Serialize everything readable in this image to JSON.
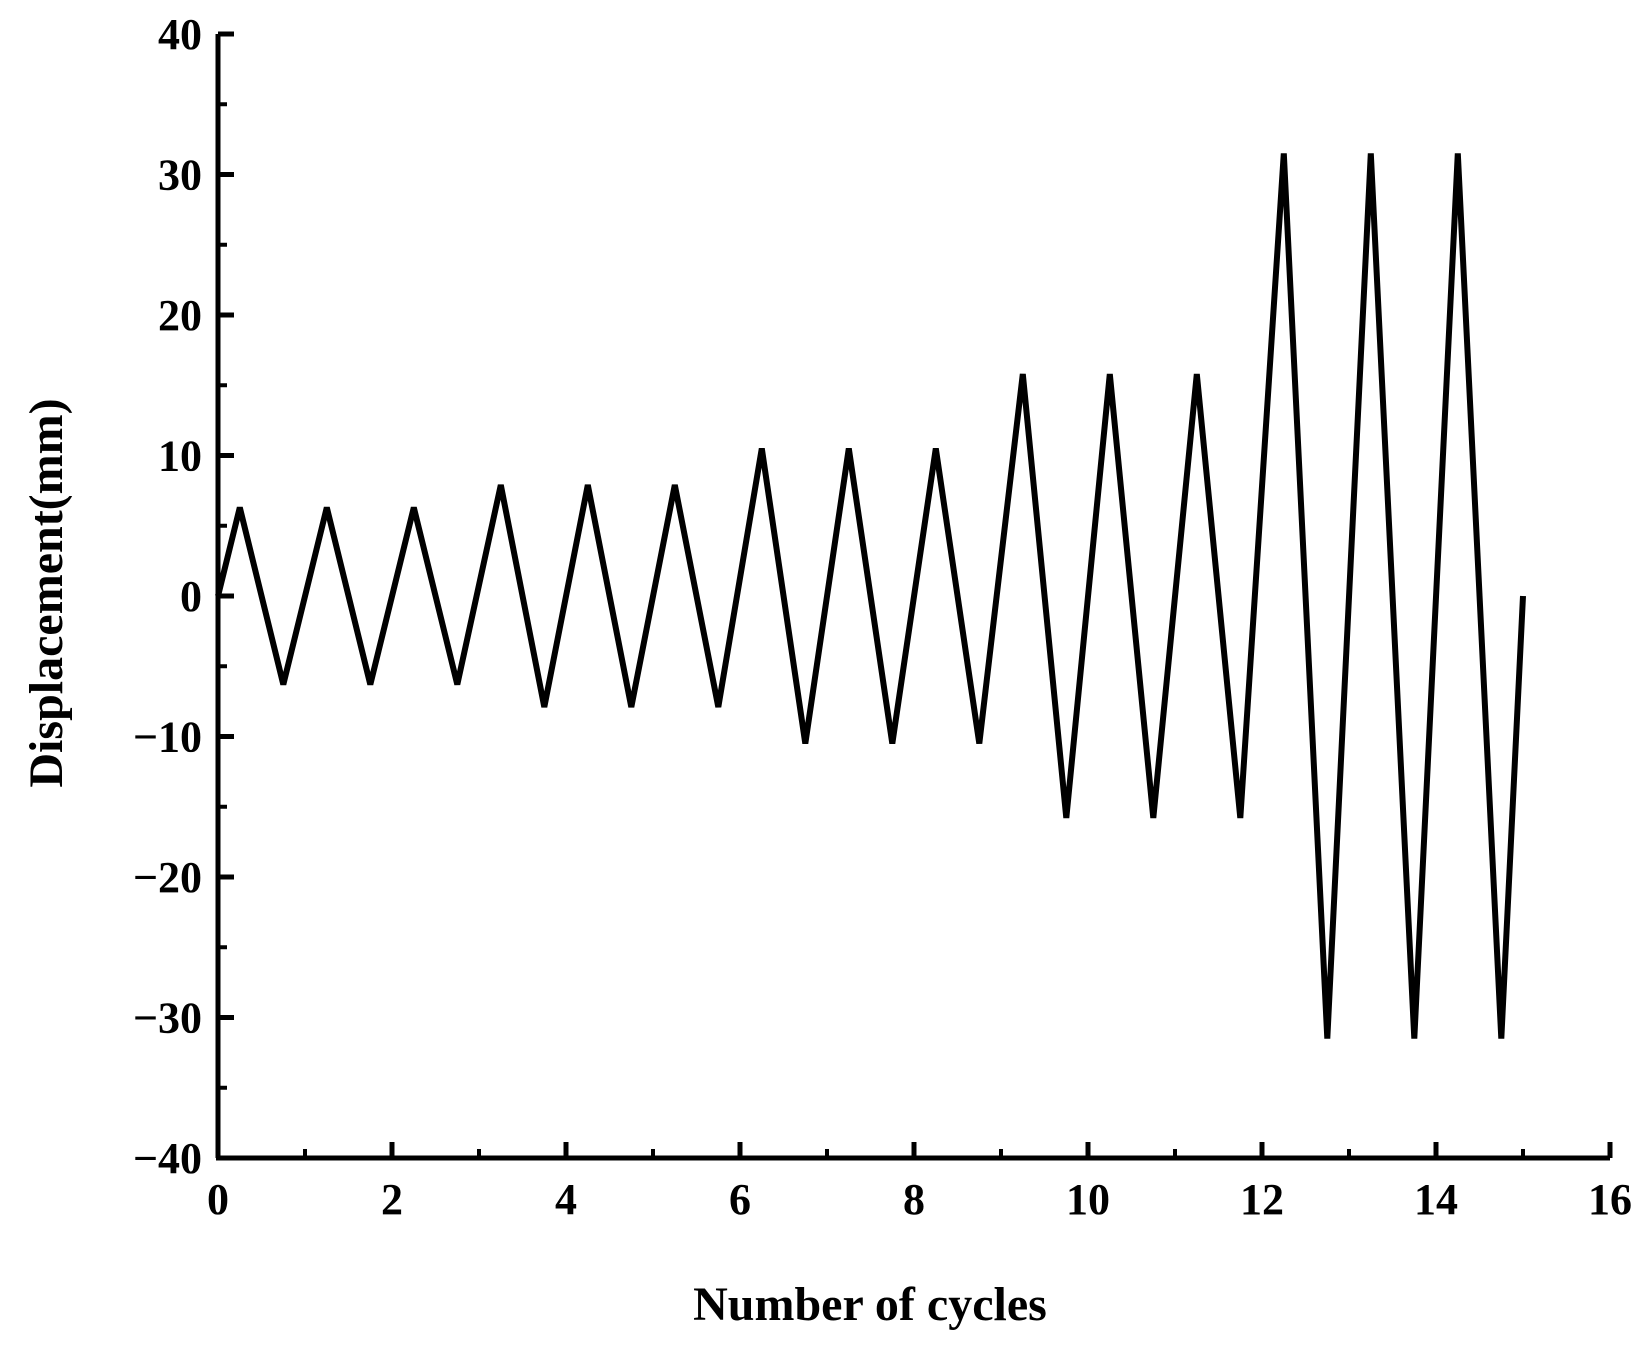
{
  "chart_data": {
    "type": "line",
    "title": "",
    "xlabel": "Number of cycles",
    "ylabel": "Displacement(mm)",
    "xlim": [
      0,
      16
    ],
    "ylim": [
      -40,
      40
    ],
    "xticks": [
      "0",
      "2",
      "4",
      "6",
      "8",
      "10",
      "12",
      "14",
      "16"
    ],
    "yticks": [
      "40",
      "30",
      "20",
      "10",
      "0",
      "−10",
      "−20",
      "−30",
      "−40"
    ],
    "ytick_values": [
      40,
      30,
      20,
      10,
      0,
      -10,
      -20,
      -30,
      -40
    ],
    "xtick_values": [
      0,
      2,
      4,
      6,
      8,
      10,
      12,
      14,
      16
    ],
    "grid": false,
    "line_color": "#000000",
    "series": [
      {
        "x": [
          0,
          0.25,
          0.75,
          1.25,
          1.75,
          2.25,
          2.75,
          3.25,
          3.75,
          4.25,
          4.75,
          5.25,
          5.75,
          6.25,
          6.75,
          7.25,
          7.75,
          8.25,
          8.75,
          9.25,
          9.75,
          10.25,
          10.75,
          11.25,
          11.75,
          12.25,
          12.75,
          13.25,
          13.75,
          14.25,
          14.75,
          15
        ],
        "y": [
          0,
          6.3,
          -6.3,
          6.3,
          -6.3,
          6.3,
          -6.3,
          7.9,
          -7.9,
          7.9,
          -7.9,
          7.9,
          -7.9,
          10.5,
          -10.5,
          10.5,
          -10.5,
          10.5,
          -10.5,
          15.8,
          -15.8,
          15.8,
          -15.8,
          15.8,
          -15.8,
          31.5,
          -31.5,
          31.5,
          -31.5,
          31.5,
          -31.5,
          0
        ]
      }
    ]
  }
}
